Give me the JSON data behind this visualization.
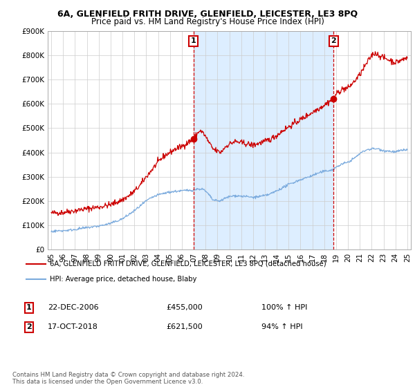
{
  "title": "6A, GLENFIELD FRITH DRIVE, GLENFIELD, LEICESTER, LE3 8PQ",
  "subtitle": "Price paid vs. HM Land Registry's House Price Index (HPI)",
  "legend_label_red": "6A, GLENFIELD FRITH DRIVE, GLENFIELD, LEICESTER, LE3 8PQ (detached house)",
  "legend_label_blue": "HPI: Average price, detached house, Blaby",
  "annotation1_date": "22-DEC-2006",
  "annotation1_price": "£455,000",
  "annotation1_pct": "100% ↑ HPI",
  "annotation2_date": "17-OCT-2018",
  "annotation2_price": "£621,500",
  "annotation2_pct": "94% ↑ HPI",
  "footnote": "Contains HM Land Registry data © Crown copyright and database right 2024.\nThis data is licensed under the Open Government Licence v3.0.",
  "ylim": [
    0,
    900000
  ],
  "yticks": [
    0,
    100000,
    200000,
    300000,
    400000,
    500000,
    600000,
    700000,
    800000,
    900000
  ],
  "red_color": "#cc0000",
  "blue_color": "#7aaadd",
  "shade_color": "#ddeeff",
  "marker1_x": 2006.97,
  "marker1_y": 455000,
  "marker2_x": 2018.79,
  "marker2_y": 621500,
  "xmin": 1994.7,
  "xmax": 2025.3
}
